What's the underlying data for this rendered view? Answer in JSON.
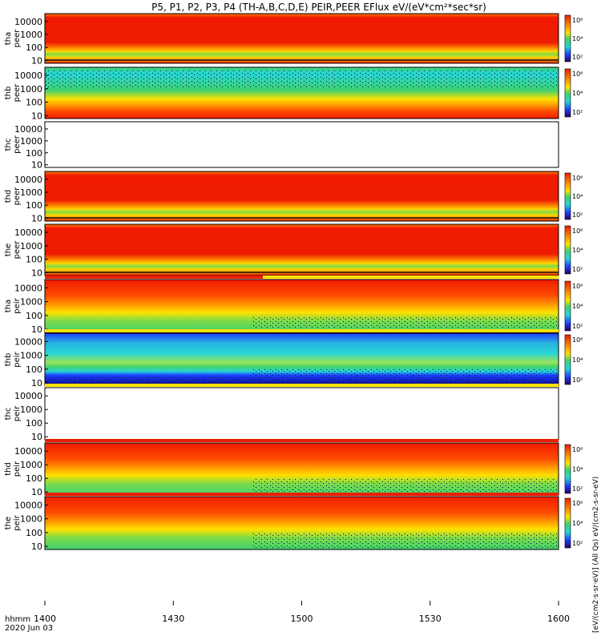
{
  "title": "P5, P1, P2, P3, P4 (TH-A,B,C,D,E) PEIR,PEER EFlux eV/(eV*cm²*sec*sr)",
  "time_label": "hhmm",
  "date_label": "2020 Jun 03",
  "right_axis_label": "[eV/(cm2·s·sr·eV)]  (All Qs)  eV/(cm2-s-sr-eV)",
  "colorbar_ticks": [
    "10⁶",
    "10⁴",
    "10²"
  ],
  "colors": {
    "red": "#ee1c00",
    "orange": "#ff8a00",
    "yellow": "#ffe100",
    "green": "#3fd26e",
    "cyan": "#27d6d6",
    "blue": "#1b3cff",
    "navy": "#0a0a80",
    "black": "#000000"
  },
  "chart_data": {
    "type": "heatmap",
    "x_range": [
      "1400",
      "1600"
    ],
    "x_ticks": [
      "1400",
      "1430",
      "1500",
      "1530",
      "1600"
    ],
    "y_scale": "log",
    "y_ticks": [
      "10",
      "100",
      "1000",
      "10000"
    ],
    "panels": [
      {
        "id": "tha-peer",
        "label_top": "tha",
        "label_bottom": "peer",
        "has_data": true
      },
      {
        "id": "thb-peer",
        "label_top": "thb",
        "label_bottom": "peer",
        "has_data": true
      },
      {
        "id": "thc-peer",
        "label_top": "thc",
        "label_bottom": "peer",
        "has_data": false
      },
      {
        "id": "thd-peer",
        "label_top": "thd",
        "label_bottom": "peer",
        "has_data": true
      },
      {
        "id": "the-peer",
        "label_top": "the",
        "label_bottom": "peer",
        "has_data": true
      },
      {
        "id": "tha-peir",
        "label_top": "tha",
        "label_bottom": "peir",
        "has_data": true
      },
      {
        "id": "thb-peir",
        "label_top": "thb",
        "label_bottom": "peir",
        "has_data": true
      },
      {
        "id": "thc-peir",
        "label_top": "thc",
        "label_bottom": "peir",
        "has_data": false
      },
      {
        "id": "thd-peir",
        "label_top": "thd",
        "label_bottom": "peir",
        "has_data": true
      },
      {
        "id": "the-peir",
        "label_top": "the",
        "label_bottom": "peir",
        "has_data": true
      }
    ]
  }
}
